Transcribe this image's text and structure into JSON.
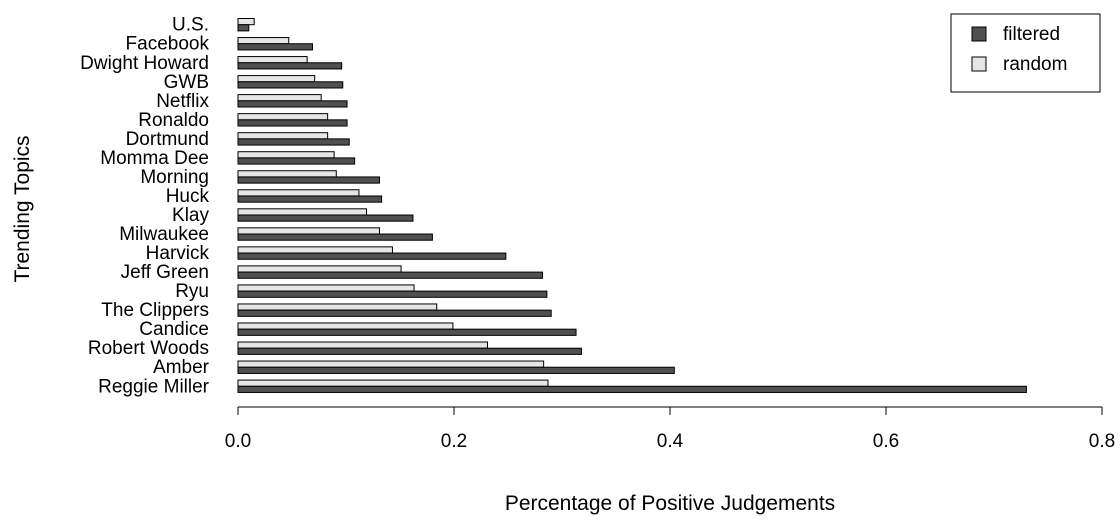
{
  "chart_data": {
    "type": "bar",
    "orientation": "horizontal",
    "ylabel": "Trending Topics",
    "xlabel": "Percentage of Positive Judgements",
    "xlim": [
      0,
      0.8
    ],
    "xticks": [
      "0.0",
      "0.2",
      "0.4",
      "0.6",
      "0.8"
    ],
    "grid": false,
    "legend_position": "top-right",
    "categories": [
      "U.S.",
      "Facebook",
      "Dwight Howard",
      "GWB",
      "Netflix",
      "Ronaldo",
      "Dortmund",
      "Momma Dee",
      "Morning",
      "Huck",
      "Klay",
      "Milwaukee",
      "Harvick",
      "Jeff Green",
      "Ryu",
      "The Clippers",
      "Candice",
      "Robert Woods",
      "Amber",
      "Reggie Miller"
    ],
    "series": [
      {
        "name": "filtered",
        "color": "#505050",
        "values": [
          0.01,
          0.069,
          0.096,
          0.097,
          0.101,
          0.101,
          0.103,
          0.108,
          0.131,
          0.133,
          0.162,
          0.18,
          0.248,
          0.282,
          0.286,
          0.29,
          0.313,
          0.318,
          0.404,
          0.73
        ]
      },
      {
        "name": "random",
        "color": "#e6e6e6",
        "values": [
          0.015,
          0.047,
          0.064,
          0.071,
          0.077,
          0.083,
          0.083,
          0.089,
          0.091,
          0.112,
          0.119,
          0.131,
          0.143,
          0.151,
          0.163,
          0.184,
          0.199,
          0.231,
          0.283,
          0.287
        ]
      }
    ]
  }
}
